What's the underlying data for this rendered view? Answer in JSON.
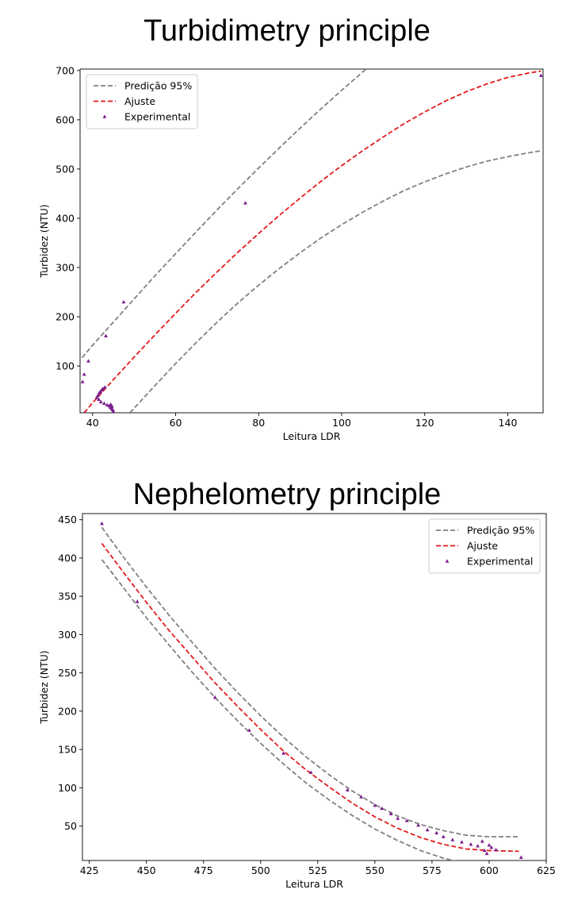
{
  "chart_data": [
    {
      "type": "scatter",
      "heading": "Turbidimetry principle",
      "xlabel": "Leitura LDR",
      "ylabel": "Turbidez (NTU)",
      "xlim": [
        37,
        148.5
      ],
      "ylim": [
        5,
        703
      ],
      "xticks": [
        40,
        60,
        80,
        100,
        120,
        140
      ],
      "yticks": [
        100,
        200,
        300,
        400,
        500,
        600,
        700
      ],
      "grid": false,
      "legend_position": "top-left",
      "legend": [
        "Predição 95%",
        "Ajuste",
        "Experimental"
      ],
      "colors": {
        "prediction": "#808080",
        "fit": "#e31a1c",
        "experimental": "#7a1a8c"
      },
      "series": [
        {
          "name": "Predição 95%",
          "style": "dashed",
          "color": "#808080",
          "upper": {
            "x": [
              37.5,
              40,
              45,
              50,
              55,
              60,
              65,
              70,
              75,
              80,
              85,
              90,
              95,
              100,
              106
            ],
            "y": [
              117,
              142,
              189,
              236,
              283,
              328,
              373,
              417,
              460,
              502,
              543,
              583,
              622,
              660,
              704
            ]
          },
          "lower": {
            "x": [
              49,
              55,
              60,
              65,
              70,
              75,
              80,
              85,
              90,
              95,
              100,
              105,
              110,
              115,
              120,
              125,
              130,
              135,
              140,
              145,
              148
            ],
            "y": [
              5,
              60,
              105,
              148,
              189,
              228,
              264,
              298,
              330,
              360,
              387,
              412,
              435,
              456,
              474,
              490,
              504,
              516,
              525,
              533,
              537
            ]
          }
        },
        {
          "name": "Ajuste",
          "style": "dashed",
          "color": "#e31a1c",
          "x": [
            38,
            40,
            45,
            50,
            55,
            60,
            65,
            70,
            75,
            80,
            85,
            90,
            95,
            100,
            105,
            110,
            115,
            120,
            125,
            130,
            135,
            140,
            145,
            148
          ],
          "y": [
            5,
            25,
            72,
            118,
            163,
            207,
            250,
            291,
            331,
            369,
            406,
            441,
            475,
            507,
            537,
            565,
            592,
            616,
            638,
            657,
            673,
            686,
            695,
            699
          ]
        },
        {
          "name": "Experimental",
          "style": "markers",
          "marker": "triangle",
          "color": "#7a1a8c",
          "x": [
            37.6,
            38,
            39,
            38.2,
            41,
            41.3,
            41.6,
            41.9,
            42.2,
            42.5,
            43,
            47.5,
            43.2,
            41.5,
            42,
            42.8,
            43.5,
            44,
            44.3,
            44.6,
            44.9,
            45,
            44.4,
            44.7,
            76.8,
            148
          ],
          "y": [
            68,
            83,
            110,
            3,
            36,
            40,
            45,
            48,
            51,
            54,
            57,
            230,
            161,
            32,
            27,
            24,
            21,
            19,
            16,
            13,
            11,
            8,
            22,
            18,
            431,
            690
          ]
        }
      ]
    },
    {
      "type": "scatter",
      "heading": "Nephelometry principle",
      "xlabel": "Leitura LDR",
      "ylabel": "Turbidez (NTU)",
      "xlim": [
        422,
        625
      ],
      "ylim": [
        5,
        458
      ],
      "xticks": [
        425,
        450,
        475,
        500,
        525,
        550,
        575,
        600,
        625
      ],
      "yticks": [
        50,
        100,
        150,
        200,
        250,
        300,
        350,
        400,
        450
      ],
      "grid": false,
      "legend_position": "top-right",
      "legend": [
        "Predição 95%",
        "Ajuste",
        "Experimental"
      ],
      "colors": {
        "prediction": "#808080",
        "fit": "#e31a1c",
        "experimental": "#7a1a8c"
      },
      "series": [
        {
          "name": "Predição 95%",
          "style": "dashed",
          "color": "#808080",
          "upper": {
            "x": [
              430.5,
              440,
              450,
              460,
              470,
              480,
              490,
              500,
              510,
              520,
              530,
              540,
              550,
              560,
              570,
              580,
              590,
              600,
              613
            ],
            "y": [
              440,
              401,
              362,
              325,
              290,
              256,
              224,
              194,
              166,
              140,
              117,
              96,
              78,
              63,
              52,
              44,
              38,
              36,
              36
            ]
          },
          "lower": {
            "x": [
              430.5,
              440,
              450,
              460,
              470,
              480,
              490,
              500,
              510,
              520,
              530,
              540,
              550,
              560,
              570,
              580,
              590,
              600,
              610
            ],
            "y": [
              398,
              361,
              322,
              286,
              251,
              218,
              187,
              158,
              131,
              106,
              84,
              64,
              46,
              31,
              18,
              8,
              1,
              -5,
              -10
            ]
          }
        },
        {
          "name": "Ajuste",
          "style": "dashed",
          "color": "#e31a1c",
          "x": [
            430.5,
            440,
            450,
            460,
            470,
            480,
            490,
            500,
            510,
            520,
            530,
            540,
            550,
            560,
            570,
            580,
            590,
            600,
            613
          ],
          "y": [
            419,
            381,
            342,
            305,
            271,
            237,
            206,
            176,
            148,
            123,
            101,
            80,
            62,
            47,
            35,
            26,
            20,
            18,
            17
          ]
        },
        {
          "name": "Experimental",
          "style": "markers",
          "marker": "triangle",
          "color": "#7a1a8c",
          "x": [
            430.5,
            446,
            480,
            495,
            510,
            522,
            538,
            544,
            550,
            553,
            557,
            560,
            564,
            569,
            573,
            577,
            580,
            584,
            588,
            592,
            595,
            597,
            598,
            599,
            600,
            601,
            603,
            614
          ],
          "y": [
            445,
            343,
            218,
            175,
            145,
            120,
            97,
            88,
            77,
            73,
            66,
            60,
            57,
            51,
            45,
            41,
            36,
            32,
            29,
            26,
            24,
            30,
            18,
            14,
            25,
            22,
            19,
            9
          ]
        }
      ]
    }
  ]
}
